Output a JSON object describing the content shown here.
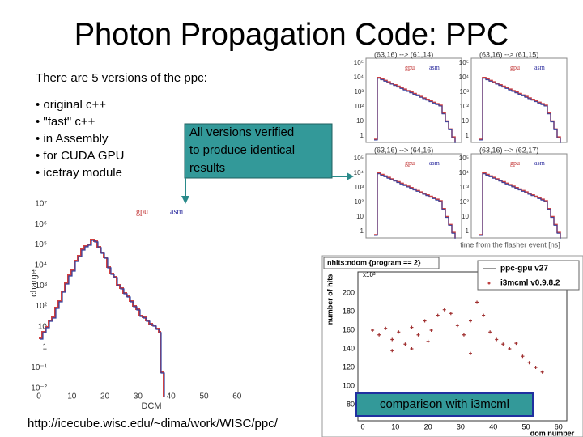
{
  "title": "Photon Propagation Code: PPC",
  "intro": "There are 5 versions of the ppc:",
  "bullets": [
    "• original c++",
    "• \"fast\" c++",
    "• in Assembly",
    "• for CUDA GPU",
    "• icetray module"
  ],
  "callout": [
    "All versions verified",
    "to produce identical",
    "results"
  ],
  "url": "http://icecube.wisc.edu/~dima/work/WISC/ppc/",
  "left_plot": {
    "legend": [
      "gpu",
      "asm"
    ],
    "y_label": "charge",
    "x_label": "DCM",
    "y_ticks": [
      "10⁷",
      "10⁶",
      "10⁵",
      "10⁴",
      "10³",
      "10²",
      "10",
      "1",
      "10⁻¹",
      "10⁻²"
    ],
    "x_ticks": [
      "0",
      "10",
      "20",
      "30",
      "40",
      "50",
      "60"
    ]
  },
  "small_plots": {
    "titles": [
      "(63,16) --> (61,14)",
      "(63,16) --> (61,15)",
      "(63,16) --> (64,16)",
      "(63,16) --> (62,17)"
    ],
    "legend": [
      "gpu",
      "asm"
    ],
    "y_ticks": [
      "10⁵",
      "10⁴",
      "10³",
      "10²",
      "10",
      "1"
    ],
    "x_label": "time from the flasher event [ns]"
  },
  "bottom_plot": {
    "title": "nhits:ndom {program == 2}",
    "legend": [
      "ppc-gpu v27",
      "i3mcml v0.9.8.2"
    ],
    "scale": "x10³",
    "y_label": "number of hits",
    "x_label": "dom number",
    "y_ticks": [
      "80",
      "100",
      "120",
      "140",
      "160",
      "180",
      "200"
    ],
    "x_ticks": [
      "0",
      "10",
      "20",
      "30",
      "40",
      "50",
      "60"
    ],
    "note": "comparison with i3mcml"
  }
}
